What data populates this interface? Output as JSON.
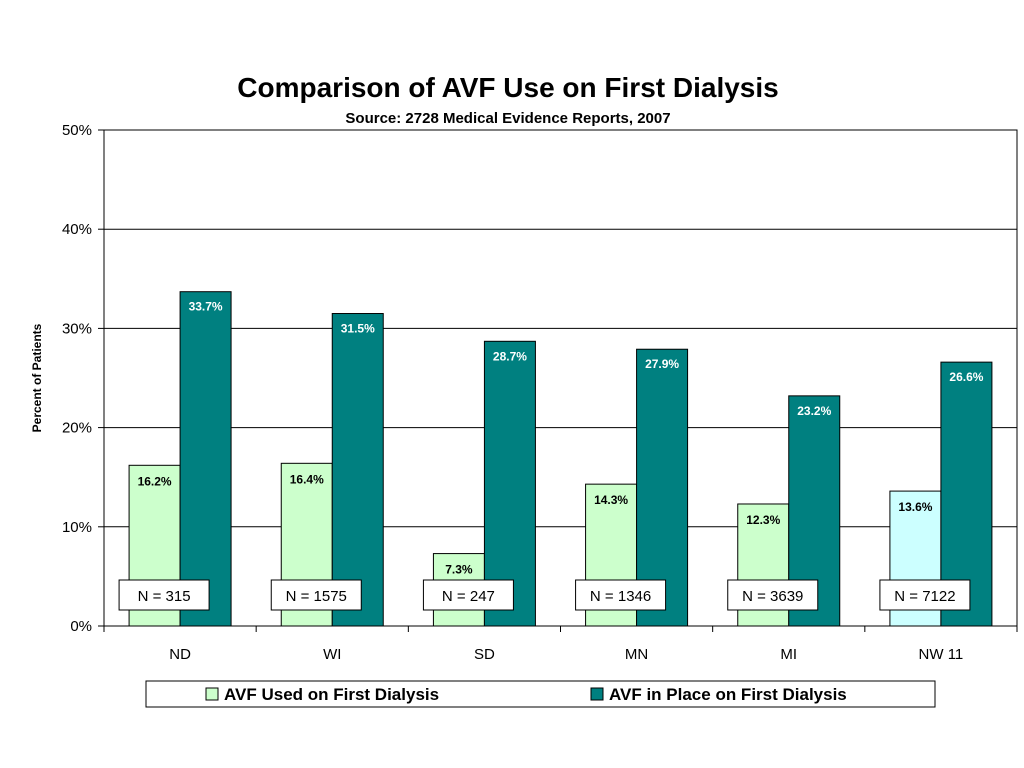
{
  "chart_data": {
    "type": "bar",
    "title": "Comparison of AVF Use on First Dialysis",
    "subtitle": "Source:  2728 Medical Evidence Reports, 2007",
    "ylabel": "Percent of Patients",
    "xlabel": "",
    "ylim": [
      0,
      50
    ],
    "yticks": [
      "0%",
      "10%",
      "20%",
      "30%",
      "40%",
      "50%"
    ],
    "grid": true,
    "legend_position": "bottom",
    "categories": [
      "ND",
      "WI",
      "SD",
      "MN",
      "MI",
      "NW 11"
    ],
    "series": [
      {
        "name": "AVF Used on First Dialysis",
        "values": [
          16.2,
          16.4,
          7.3,
          14.3,
          12.3,
          13.6
        ],
        "labels": [
          "16.2%",
          "16.4%",
          "7.3%",
          "14.3%",
          "12.3%",
          "13.6%"
        ],
        "color": "#ccffcc",
        "highlight_color": "#ccffff",
        "label_color": "#000000"
      },
      {
        "name": "AVF in Place on First Dialysis",
        "values": [
          33.7,
          31.5,
          28.7,
          27.9,
          23.2,
          26.6
        ],
        "labels": [
          "33.7%",
          "31.5%",
          "28.7%",
          "27.9%",
          "23.2%",
          "26.6%"
        ],
        "color": "#008080",
        "label_color": "#ffffff"
      }
    ],
    "highlighted_category": "NW 11",
    "sample_sizes": [
      "N = 315",
      "N = 1575",
      "N = 247",
      "N = 1346",
      "N = 3639",
      "N = 7122"
    ]
  }
}
